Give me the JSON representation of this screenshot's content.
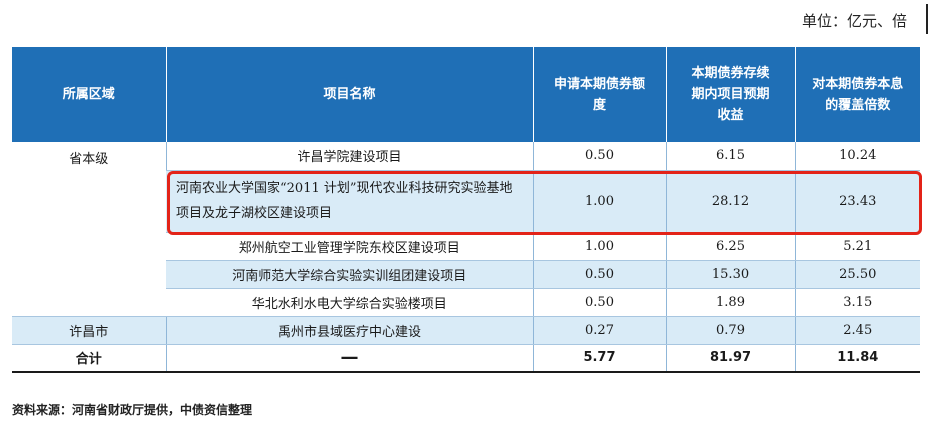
{
  "unit_label": "单位：亿元、倍",
  "columns": [
    "所属区域",
    "项目名称",
    "申请本期债券额度",
    "本期债券存续期内项目预期收益",
    "对本期债券本息的覆盖倍数"
  ],
  "regions": {
    "provincial": "省本级",
    "xuchang": "许昌市"
  },
  "rows": [
    {
      "name": "许昌学院建设项目",
      "amount": "0.50",
      "revenue": "6.15",
      "coverage": "10.24"
    },
    {
      "name": "河南农业大学国家“2011 计划”现代农业科技研究实验基地项目及龙子湖校区建设项目",
      "amount": "1.00",
      "revenue": "28.12",
      "coverage": "23.43"
    },
    {
      "name": "郑州航空工业管理学院东校区建设项目",
      "amount": "1.00",
      "revenue": "6.25",
      "coverage": "5.21"
    },
    {
      "name": "河南师范大学综合实验实训组团建设项目",
      "amount": "0.50",
      "revenue": "15.30",
      "coverage": "25.50"
    },
    {
      "name": "华北水利水电大学综合实验楼项目",
      "amount": "0.50",
      "revenue": "1.89",
      "coverage": "3.15"
    },
    {
      "name": "禹州市县域医疗中心建设",
      "amount": "0.27",
      "revenue": "0.79",
      "coverage": "2.45"
    }
  ],
  "total": {
    "label": "合计",
    "name": "—",
    "amount": "5.77",
    "revenue": "81.97",
    "coverage": "11.84"
  },
  "source": "资料来源：河南省财政厅提供，中债资信整理",
  "colors": {
    "header_bg": "#1f6fb6",
    "row_shade": "#d9ebf7",
    "highlight": "#e32318"
  }
}
